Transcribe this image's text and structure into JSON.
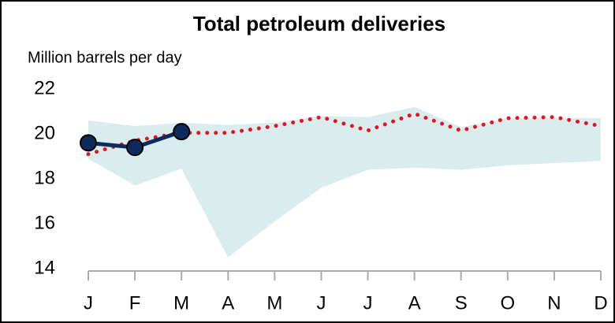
{
  "chart_data": {
    "type": "line",
    "title": "Total petroleum deliveries",
    "subtitle": "Million barrels per day",
    "categories": [
      "J",
      "F",
      "M",
      "A",
      "M",
      "J",
      "J",
      "A",
      "S",
      "O",
      "N",
      "D"
    ],
    "ylim": [
      14,
      22
    ],
    "yticks": [
      14,
      16,
      18,
      20,
      22
    ],
    "grid": false,
    "band": {
      "color": "#d9ecee",
      "upper": [
        20.6,
        20.35,
        20.5,
        20.4,
        20.5,
        20.8,
        20.75,
        21.2,
        20.3,
        20.7,
        20.7,
        20.7
      ],
      "lower": [
        18.9,
        17.7,
        18.45,
        14.5,
        16.1,
        17.6,
        18.4,
        18.5,
        18.4,
        18.6,
        18.7,
        18.8
      ]
    },
    "series": [
      {
        "color": "#0c2a5c",
        "style": "solid-markers",
        "values": [
          19.6,
          19.4,
          20.1,
          null,
          null,
          null,
          null,
          null,
          null,
          null,
          null,
          null
        ]
      },
      {
        "color": "#e8121a",
        "style": "dotted",
        "values": [
          19.1,
          19.7,
          20.05,
          20.05,
          20.35,
          20.75,
          20.15,
          20.9,
          20.15,
          20.7,
          20.75,
          20.35
        ]
      }
    ]
  }
}
